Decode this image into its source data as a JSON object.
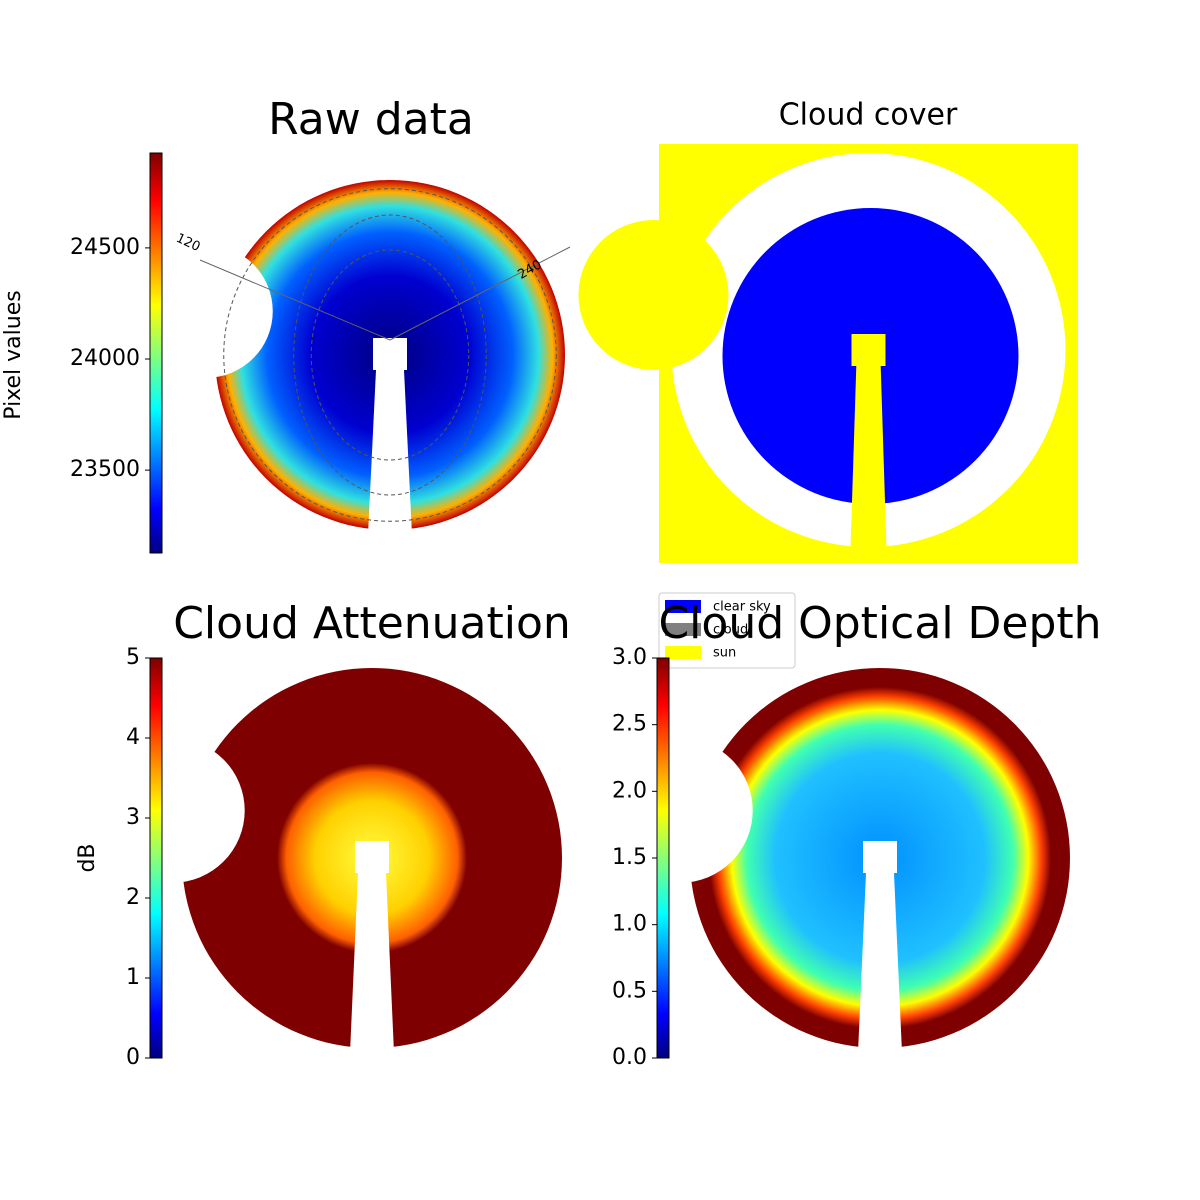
{
  "chart_data": [
    {
      "type": "heatmap",
      "title": "Raw data",
      "colorbar_label": "Pixel values",
      "colormap": "jet",
      "clim": [
        23127,
        24927
      ],
      "cticks": [
        23500,
        24000,
        24500
      ],
      "polar_labels": [
        "120",
        "240"
      ]
    },
    {
      "type": "categorical",
      "title": "Cloud cover",
      "series": [
        {
          "name": "clear sky",
          "color": "#0000ff"
        },
        {
          "name": "cloud",
          "color": "#808080"
        },
        {
          "name": "sun",
          "color": "#ffff00"
        }
      ]
    },
    {
      "type": "heatmap",
      "title": "Cloud Attenuation",
      "colorbar_label": "dB",
      "colormap": "jet",
      "clim": [
        0,
        5
      ],
      "cticks": [
        0,
        1,
        2,
        3,
        4,
        5
      ]
    },
    {
      "type": "heatmap",
      "title": "Cloud Optical Depth",
      "colormap": "jet",
      "clim": [
        0,
        3
      ],
      "cticks": [
        {
          "value": 0,
          "label": "0.0"
        },
        {
          "value": 0.5,
          "label": "0.5"
        },
        {
          "value": 1,
          "label": "1.0"
        },
        {
          "value": 1.5,
          "label": "1.5"
        },
        {
          "value": 2,
          "label": "2.0"
        },
        {
          "value": 2.5,
          "label": "2.5"
        },
        {
          "value": 3,
          "label": "3.0"
        }
      ]
    }
  ]
}
